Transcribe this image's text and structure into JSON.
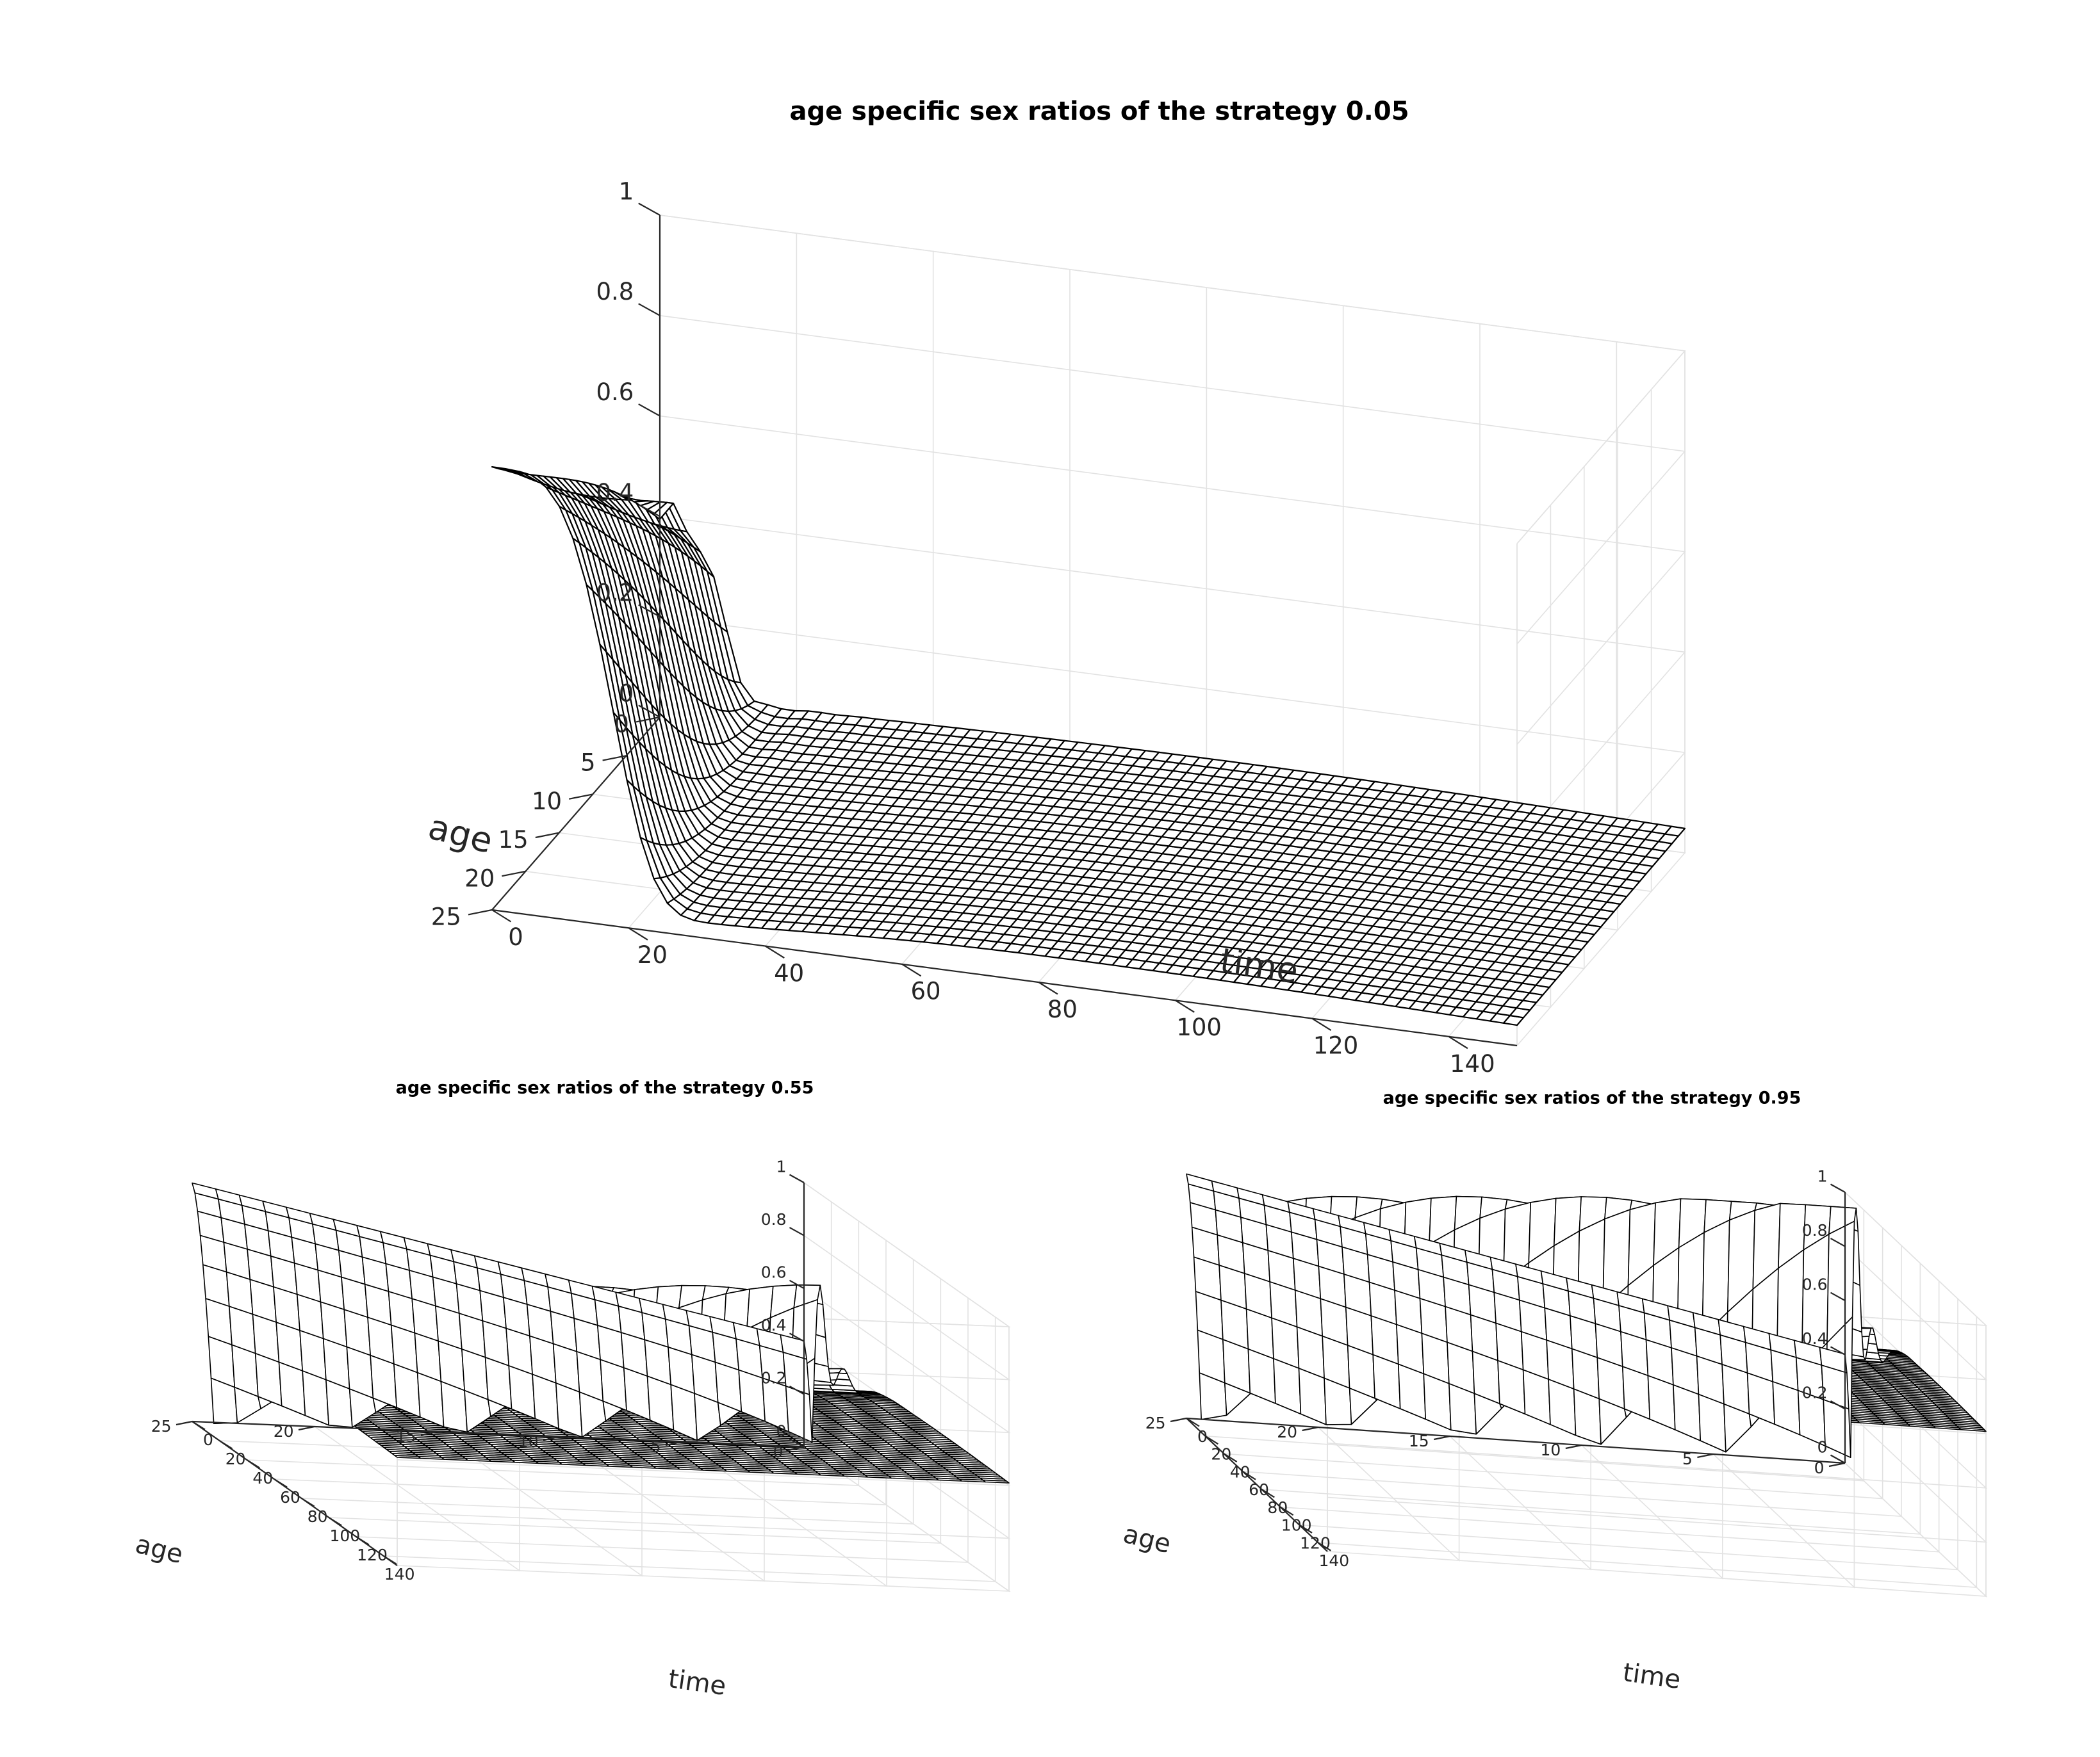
{
  "chart_data": [
    {
      "type": "surface",
      "title": "age specific sex ratios of the strategy 0.05",
      "xlabel": "time",
      "ylabel": "age",
      "zlabel": "",
      "xlim": [
        0,
        150
      ],
      "ylim": [
        0,
        25
      ],
      "zlim": [
        0,
        1
      ],
      "xticks": [
        "0",
        "20",
        "40",
        "60",
        "80",
        "100",
        "120",
        "140"
      ],
      "yticks": [
        "0",
        "5",
        "10",
        "15",
        "20",
        "25"
      ],
      "zticks": [
        "0",
        "0.2",
        "0.4",
        "0.6",
        "0.8",
        "1"
      ],
      "grid": true,
      "strategy": 0.05,
      "baseline_ratio": 0.05,
      "initial_ratio_young": 0.4,
      "initial_ratio_old": 0.9,
      "z_at_age_0": [
        {
          "time": 0,
          "value": 0.4
        },
        {
          "time": 10,
          "value": 0.15
        },
        {
          "time": 20,
          "value": 0.06
        },
        {
          "time": 40,
          "value": 0.05
        },
        {
          "time": 80,
          "value": 0.06
        },
        {
          "time": 120,
          "value": 0.05
        },
        {
          "time": 150,
          "value": 0.05
        }
      ],
      "z_at_age_25": [
        {
          "time": 0,
          "value": 0.9
        },
        {
          "time": 10,
          "value": 0.6
        },
        {
          "time": 20,
          "value": 0.05
        },
        {
          "time": 80,
          "value": 0.06
        },
        {
          "time": 150,
          "value": 0.05
        }
      ]
    },
    {
      "type": "surface",
      "title": "age specific sex ratios of the strategy 0.55",
      "xlabel": "time",
      "ylabel": "age",
      "zlabel": "",
      "xlim": [
        0,
        150
      ],
      "ylim": [
        0,
        25
      ],
      "zlim": [
        0,
        1
      ],
      "xticks": [
        "0",
        "20",
        "40",
        "60",
        "80",
        "100",
        "120",
        "140"
      ],
      "yticks": [
        "0",
        "5",
        "10",
        "15",
        "20",
        "25"
      ],
      "zticks": [
        "0",
        "0.2",
        "0.4",
        "0.6",
        "0.8",
        "1"
      ],
      "grid": true,
      "strategy": 0.55,
      "baseline_ratio": 0.4,
      "initial_ratio_young": 0.4,
      "initial_ratio_old": 0.9,
      "z_at_age_0": [
        {
          "time": 0,
          "value": 0.4
        },
        {
          "time": 10,
          "value": 0.1
        },
        {
          "time": 25,
          "value": 0.5
        },
        {
          "time": 40,
          "value": 0.37
        },
        {
          "time": 100,
          "value": 0.39
        },
        {
          "time": 150,
          "value": 0.4
        }
      ],
      "z_at_age_25": [
        {
          "time": 0,
          "value": 0.9
        },
        {
          "time": 15,
          "value": 0.05
        },
        {
          "time": 40,
          "value": 0.38
        },
        {
          "time": 150,
          "value": 0.4
        }
      ]
    },
    {
      "type": "surface",
      "title": "age specific sex ratios of the strategy 0.95",
      "xlabel": "time",
      "ylabel": "age",
      "zlabel": "",
      "xlim": [
        0,
        150
      ],
      "ylim": [
        0,
        25
      ],
      "zlim": [
        0,
        1
      ],
      "xticks": [
        "0",
        "20",
        "40",
        "60",
        "80",
        "100",
        "120",
        "140"
      ],
      "yticks": [
        "0",
        "5",
        "10",
        "15",
        "20",
        "25"
      ],
      "zticks": [
        "0",
        "0.2",
        "0.4",
        "0.6",
        "0.8",
        "1"
      ],
      "grid": true,
      "strategy": 0.95,
      "baseline_ratio": 0.6,
      "initial_ratio_young": 0.4,
      "initial_ratio_old": 0.9,
      "z_at_age_0": [
        {
          "time": 0,
          "value": 0.4
        },
        {
          "time": 10,
          "value": 0.05
        },
        {
          "time": 20,
          "value": 0.85
        },
        {
          "time": 40,
          "value": 0.5
        },
        {
          "time": 100,
          "value": 0.58
        },
        {
          "time": 150,
          "value": 0.6
        }
      ],
      "z_at_age_25": [
        {
          "time": 0,
          "value": 0.9
        },
        {
          "time": 15,
          "value": 0.05
        },
        {
          "time": 40,
          "value": 0.55
        },
        {
          "time": 150,
          "value": 0.6
        }
      ]
    }
  ]
}
